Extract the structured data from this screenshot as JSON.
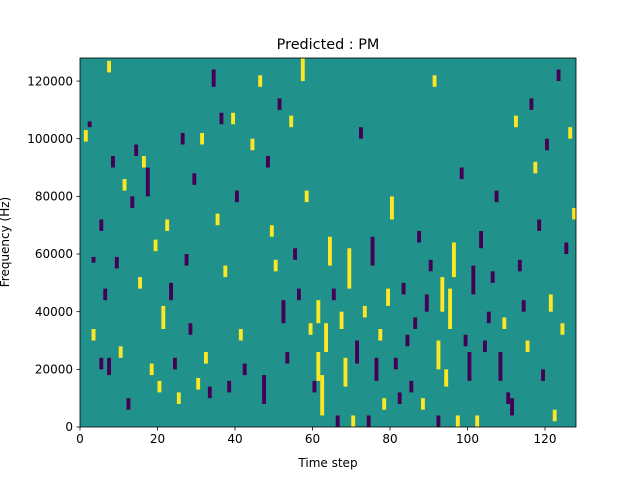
{
  "chart_data": {
    "type": "heatmap",
    "title": "Predicted : PM",
    "xlabel": "Time step",
    "ylabel": "Frequency (Hz)",
    "xlim": [
      0,
      128
    ],
    "ylim": [
      0,
      128000
    ],
    "x_ticks": [
      0,
      20,
      40,
      60,
      80,
      100,
      120
    ],
    "x_tick_labels": [
      "0",
      "20",
      "40",
      "60",
      "80",
      "100",
      "120"
    ],
    "y_ticks": [
      0,
      20000,
      40000,
      60000,
      80000,
      100000,
      120000
    ],
    "y_tick_labels": [
      "0",
      "20000",
      "40000",
      "60000",
      "80000",
      "100000",
      "120000"
    ],
    "colormap": "viridis",
    "value_levels": [
      -1,
      0,
      1
    ],
    "colors": {
      "-1": "#440154",
      "0": "#21918c",
      "1": "#fde725"
    },
    "background_value": 0,
    "bin_height": 2000,
    "cells": [
      {
        "x": 1,
        "y": 99000,
        "h": 4000,
        "v": 1
      },
      {
        "x": 2,
        "y": 104000,
        "h": 2000,
        "v": -1
      },
      {
        "x": 3,
        "y": 57000,
        "h": 2000,
        "v": -1
      },
      {
        "x": 3,
        "y": 30000,
        "h": 4000,
        "v": 1
      },
      {
        "x": 5,
        "y": 68000,
        "h": 4000,
        "v": -1
      },
      {
        "x": 5,
        "y": 20000,
        "h": 4000,
        "v": -1
      },
      {
        "x": 6,
        "y": 44000,
        "h": 4000,
        "v": -1
      },
      {
        "x": 7,
        "y": 123000,
        "h": 4000,
        "v": 1
      },
      {
        "x": 7,
        "y": 18000,
        "h": 6000,
        "v": -1
      },
      {
        "x": 8,
        "y": 90000,
        "h": 4000,
        "v": -1
      },
      {
        "x": 9,
        "y": 55000,
        "h": 4000,
        "v": -1
      },
      {
        "x": 10,
        "y": 24000,
        "h": 4000,
        "v": 1
      },
      {
        "x": 11,
        "y": 82000,
        "h": 4000,
        "v": 1
      },
      {
        "x": 12,
        "y": 6000,
        "h": 4000,
        "v": -1
      },
      {
        "x": 13,
        "y": 76000,
        "h": 4000,
        "v": -1
      },
      {
        "x": 14,
        "y": 94000,
        "h": 4000,
        "v": -1
      },
      {
        "x": 15,
        "y": 48000,
        "h": 4000,
        "v": 1
      },
      {
        "x": 16,
        "y": 90000,
        "h": 4000,
        "v": 1
      },
      {
        "x": 17,
        "y": 80000,
        "h": 10000,
        "v": -1
      },
      {
        "x": 18,
        "y": 18000,
        "h": 4000,
        "v": 1
      },
      {
        "x": 19,
        "y": 61000,
        "h": 4000,
        "v": 1
      },
      {
        "x": 20,
        "y": 12000,
        "h": 4000,
        "v": 1
      },
      {
        "x": 21,
        "y": 34000,
        "h": 8000,
        "v": 1
      },
      {
        "x": 22,
        "y": 68000,
        "h": 4000,
        "v": 1
      },
      {
        "x": 23,
        "y": 44000,
        "h": 6000,
        "v": -1
      },
      {
        "x": 24,
        "y": 20000,
        "h": 4000,
        "v": -1
      },
      {
        "x": 25,
        "y": 8000,
        "h": 4000,
        "v": 1
      },
      {
        "x": 26,
        "y": 98000,
        "h": 4000,
        "v": -1
      },
      {
        "x": 27,
        "y": 56000,
        "h": 4000,
        "v": -1
      },
      {
        "x": 28,
        "y": 32000,
        "h": 4000,
        "v": -1
      },
      {
        "x": 29,
        "y": 84000,
        "h": 4000,
        "v": -1
      },
      {
        "x": 30,
        "y": 13000,
        "h": 4000,
        "v": 1
      },
      {
        "x": 31,
        "y": 98000,
        "h": 4000,
        "v": 1
      },
      {
        "x": 32,
        "y": 22000,
        "h": 4000,
        "v": 1
      },
      {
        "x": 33,
        "y": 10000,
        "h": 4000,
        "v": -1
      },
      {
        "x": 34,
        "y": 118000,
        "h": 6000,
        "v": -1
      },
      {
        "x": 35,
        "y": 70000,
        "h": 4000,
        "v": 1
      },
      {
        "x": 36,
        "y": 105000,
        "h": 4000,
        "v": -1
      },
      {
        "x": 37,
        "y": 52000,
        "h": 4000,
        "v": 1
      },
      {
        "x": 38,
        "y": 12000,
        "h": 4000,
        "v": -1
      },
      {
        "x": 39,
        "y": 105000,
        "h": 4000,
        "v": 1
      },
      {
        "x": 40,
        "y": 78000,
        "h": 4000,
        "v": -1
      },
      {
        "x": 41,
        "y": 30000,
        "h": 4000,
        "v": 1
      },
      {
        "x": 42,
        "y": 18000,
        "h": 4000,
        "v": -1
      },
      {
        "x": 44,
        "y": 96000,
        "h": 4000,
        "v": 1
      },
      {
        "x": 46,
        "y": 118000,
        "h": 4000,
        "v": 1
      },
      {
        "x": 47,
        "y": 8000,
        "h": 10000,
        "v": -1
      },
      {
        "x": 48,
        "y": 90000,
        "h": 4000,
        "v": -1
      },
      {
        "x": 49,
        "y": 66000,
        "h": 4000,
        "v": 1
      },
      {
        "x": 50,
        "y": 54000,
        "h": 4000,
        "v": 1
      },
      {
        "x": 51,
        "y": 110000,
        "h": 4000,
        "v": -1
      },
      {
        "x": 52,
        "y": 36000,
        "h": 8000,
        "v": -1
      },
      {
        "x": 53,
        "y": 22000,
        "h": 4000,
        "v": -1
      },
      {
        "x": 54,
        "y": 104000,
        "h": 4000,
        "v": 1
      },
      {
        "x": 55,
        "y": 58000,
        "h": 4000,
        "v": -1
      },
      {
        "x": 56,
        "y": 44000,
        "h": 4000,
        "v": -1
      },
      {
        "x": 57,
        "y": 120000,
        "h": 8000,
        "v": 1
      },
      {
        "x": 58,
        "y": 78000,
        "h": 4000,
        "v": 1
      },
      {
        "x": 59,
        "y": 32000,
        "h": 4000,
        "v": 1
      },
      {
        "x": 60,
        "y": 12000,
        "h": 4000,
        "v": -1
      },
      {
        "x": 61,
        "y": 36000,
        "h": 8000,
        "v": 1
      },
      {
        "x": 61,
        "y": 16000,
        "h": 10000,
        "v": 1
      },
      {
        "x": 62,
        "y": 4000,
        "h": 14000,
        "v": 1
      },
      {
        "x": 63,
        "y": 26000,
        "h": 10000,
        "v": 1
      },
      {
        "x": 64,
        "y": 56000,
        "h": 10000,
        "v": 1
      },
      {
        "x": 65,
        "y": 44000,
        "h": 4000,
        "v": -1
      },
      {
        "x": 66,
        "y": 0,
        "h": 4000,
        "v": -1
      },
      {
        "x": 67,
        "y": 34000,
        "h": 6000,
        "v": 1
      },
      {
        "x": 68,
        "y": 14000,
        "h": 10000,
        "v": 1
      },
      {
        "x": 69,
        "y": 48000,
        "h": 14000,
        "v": 1
      },
      {
        "x": 70,
        "y": 0,
        "h": 4000,
        "v": 1
      },
      {
        "x": 71,
        "y": 22000,
        "h": 8000,
        "v": -1
      },
      {
        "x": 72,
        "y": 100000,
        "h": 4000,
        "v": -1
      },
      {
        "x": 73,
        "y": 38000,
        "h": 4000,
        "v": 1
      },
      {
        "x": 74,
        "y": 0,
        "h": 4000,
        "v": -1
      },
      {
        "x": 75,
        "y": 56000,
        "h": 10000,
        "v": -1
      },
      {
        "x": 76,
        "y": 16000,
        "h": 8000,
        "v": -1
      },
      {
        "x": 77,
        "y": 30000,
        "h": 4000,
        "v": 1
      },
      {
        "x": 78,
        "y": 6000,
        "h": 4000,
        "v": 1
      },
      {
        "x": 79,
        "y": 42000,
        "h": 6000,
        "v": 1
      },
      {
        "x": 80,
        "y": 72000,
        "h": 8000,
        "v": 1
      },
      {
        "x": 81,
        "y": 20000,
        "h": 4000,
        "v": -1
      },
      {
        "x": 82,
        "y": 8000,
        "h": 4000,
        "v": -1
      },
      {
        "x": 83,
        "y": 46000,
        "h": 4000,
        "v": -1
      },
      {
        "x": 84,
        "y": 28000,
        "h": 4000,
        "v": -1
      },
      {
        "x": 85,
        "y": 12000,
        "h": 4000,
        "v": -1
      },
      {
        "x": 86,
        "y": 34000,
        "h": 4000,
        "v": -1
      },
      {
        "x": 87,
        "y": 64000,
        "h": 4000,
        "v": -1
      },
      {
        "x": 88,
        "y": 6000,
        "h": 4000,
        "v": 1
      },
      {
        "x": 89,
        "y": 40000,
        "h": 6000,
        "v": -1
      },
      {
        "x": 90,
        "y": 54000,
        "h": 4000,
        "v": -1
      },
      {
        "x": 91,
        "y": 118000,
        "h": 4000,
        "v": 1
      },
      {
        "x": 92,
        "y": 20000,
        "h": 10000,
        "v": 1
      },
      {
        "x": 92,
        "y": 0,
        "h": 4000,
        "v": -1
      },
      {
        "x": 93,
        "y": 40000,
        "h": 12000,
        "v": 1
      },
      {
        "x": 94,
        "y": 14000,
        "h": 6000,
        "v": 1
      },
      {
        "x": 95,
        "y": 34000,
        "h": 14000,
        "v": 1
      },
      {
        "x": 96,
        "y": 52000,
        "h": 12000,
        "v": 1
      },
      {
        "x": 97,
        "y": 0,
        "h": 4000,
        "v": 1
      },
      {
        "x": 98,
        "y": 86000,
        "h": 4000,
        "v": -1
      },
      {
        "x": 99,
        "y": 28000,
        "h": 4000,
        "v": -1
      },
      {
        "x": 100,
        "y": 16000,
        "h": 10000,
        "v": -1
      },
      {
        "x": 101,
        "y": 46000,
        "h": 10000,
        "v": -1
      },
      {
        "x": 102,
        "y": 0,
        "h": 4000,
        "v": 1
      },
      {
        "x": 103,
        "y": 62000,
        "h": 6000,
        "v": -1
      },
      {
        "x": 104,
        "y": 26000,
        "h": 4000,
        "v": -1
      },
      {
        "x": 105,
        "y": 36000,
        "h": 4000,
        "v": -1
      },
      {
        "x": 106,
        "y": 50000,
        "h": 4000,
        "v": -1
      },
      {
        "x": 107,
        "y": 78000,
        "h": 4000,
        "v": -1
      },
      {
        "x": 108,
        "y": 16000,
        "h": 10000,
        "v": -1
      },
      {
        "x": 109,
        "y": 34000,
        "h": 4000,
        "v": 1
      },
      {
        "x": 110,
        "y": 8000,
        "h": 4000,
        "v": -1
      },
      {
        "x": 111,
        "y": 4000,
        "h": 6000,
        "v": -1
      },
      {
        "x": 112,
        "y": 104000,
        "h": 4000,
        "v": 1
      },
      {
        "x": 113,
        "y": 54000,
        "h": 4000,
        "v": -1
      },
      {
        "x": 114,
        "y": 40000,
        "h": 4000,
        "v": -1
      },
      {
        "x": 115,
        "y": 26000,
        "h": 4000,
        "v": 1
      },
      {
        "x": 116,
        "y": 110000,
        "h": 4000,
        "v": -1
      },
      {
        "x": 117,
        "y": 88000,
        "h": 4000,
        "v": 1
      },
      {
        "x": 118,
        "y": 68000,
        "h": 4000,
        "v": -1
      },
      {
        "x": 119,
        "y": 16000,
        "h": 4000,
        "v": -1
      },
      {
        "x": 120,
        "y": 96000,
        "h": 4000,
        "v": -1
      },
      {
        "x": 121,
        "y": 40000,
        "h": 6000,
        "v": 1
      },
      {
        "x": 122,
        "y": 2000,
        "h": 4000,
        "v": 1
      },
      {
        "x": 123,
        "y": 120000,
        "h": 4000,
        "v": -1
      },
      {
        "x": 124,
        "y": 32000,
        "h": 4000,
        "v": 1
      },
      {
        "x": 125,
        "y": 60000,
        "h": 4000,
        "v": -1
      },
      {
        "x": 126,
        "y": 100000,
        "h": 4000,
        "v": 1
      },
      {
        "x": 127,
        "y": 72000,
        "h": 4000,
        "v": 1
      }
    ]
  }
}
